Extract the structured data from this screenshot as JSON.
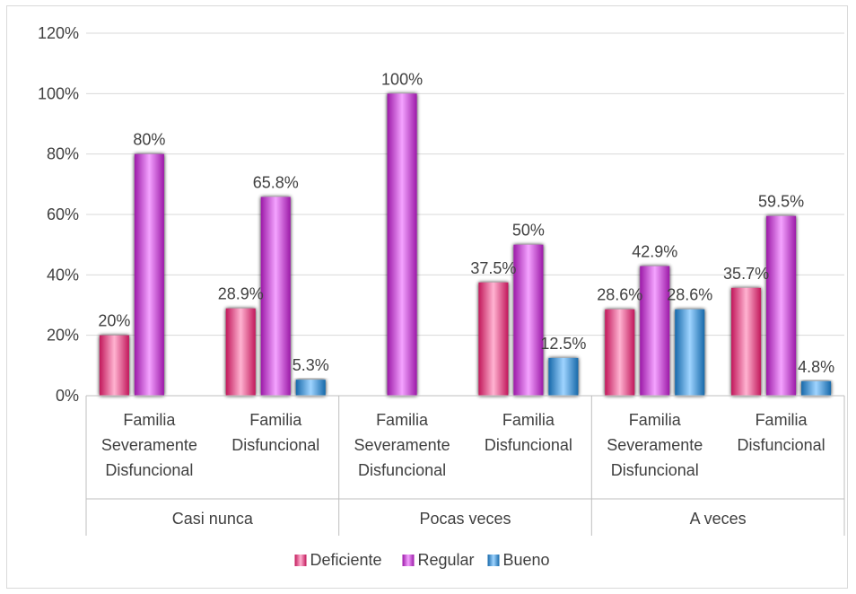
{
  "chart_data": {
    "type": "bar",
    "title": "",
    "xlabel": "",
    "ylabel": "",
    "ylim": [
      0,
      120
    ],
    "y_ticks": [
      "0%",
      "20%",
      "40%",
      "60%",
      "80%",
      "100%",
      "120%"
    ],
    "grid": true,
    "legend_position": "bottom",
    "groups": [
      {
        "label": "Casi nunca",
        "categories": [
          {
            "label_lines": [
              "Familia",
              "Severamente",
              "Disfuncional"
            ],
            "values": [
              20,
              80,
              null
            ],
            "labels": [
              "20%",
              "80%",
              ""
            ]
          },
          {
            "label_lines": [
              "Familia",
              "Disfuncional"
            ],
            "values": [
              28.9,
              65.8,
              5.3
            ],
            "labels": [
              "28.9%",
              "65.8%",
              "5.3%"
            ]
          }
        ]
      },
      {
        "label": "Pocas veces",
        "categories": [
          {
            "label_lines": [
              "Familia",
              "Severamente",
              "Disfuncional"
            ],
            "values": [
              null,
              100,
              null
            ],
            "labels": [
              "",
              "100%",
              ""
            ]
          },
          {
            "label_lines": [
              "Familia",
              "Disfuncional"
            ],
            "values": [
              37.5,
              50,
              12.5
            ],
            "labels": [
              "37.5%",
              "50%",
              "12.5%"
            ]
          }
        ]
      },
      {
        "label": "A veces",
        "categories": [
          {
            "label_lines": [
              "Familia",
              "Severamente",
              "Disfuncional"
            ],
            "values": [
              28.6,
              42.9,
              28.6
            ],
            "labels": [
              "28.6%",
              "42.9%",
              "28.6%"
            ]
          },
          {
            "label_lines": [
              "Familia",
              "Disfuncional"
            ],
            "values": [
              35.7,
              59.5,
              4.8
            ],
            "labels": [
              "35.7%",
              "59.5%",
              "4.8%"
            ]
          }
        ]
      }
    ],
    "series": [
      {
        "name": "Deficiente",
        "color": "#e8307a",
        "light": "#ffb3d1",
        "dark": "#c2185b"
      },
      {
        "name": "Regular",
        "color": "#c72fd2",
        "light": "#f4a3ff",
        "dark": "#9c1aa8"
      },
      {
        "name": "Bueno",
        "color": "#2e8fd8",
        "light": "#9fd4ff",
        "dark": "#1769aa"
      }
    ],
    "grid_color": "#d9d9d9",
    "axis_color": "#bfbfbf",
    "text_color": "#404040"
  }
}
